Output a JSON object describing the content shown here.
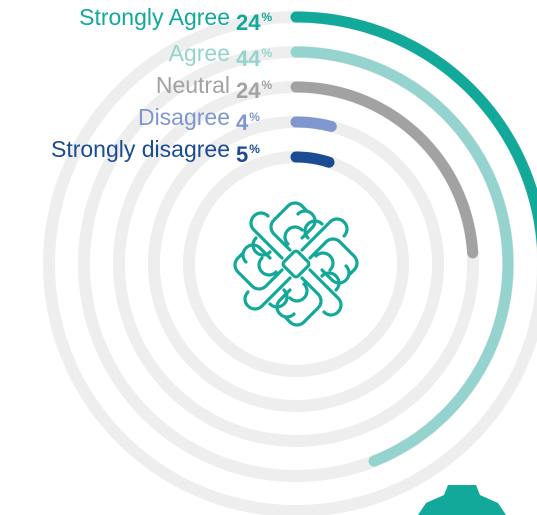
{
  "chart_data": {
    "type": "radial-bar",
    "series": [
      {
        "label": "Strongly Agree",
        "value": 24,
        "color": "#12a99a"
      },
      {
        "label": "Agree",
        "value": 44,
        "color": "#95d4ce"
      },
      {
        "label": "Neutral",
        "value": 24,
        "color": "#a2a2a2"
      },
      {
        "label": "Disagree",
        "value": 4,
        "color": "#7f96cf"
      },
      {
        "label": "Strongly disagree",
        "value": 5,
        "color": "#1b4b93"
      }
    ],
    "unit": "%",
    "track_color": "#eeeeee",
    "icon": "linked-hands-icon",
    "icon_color": "#12a99a"
  }
}
